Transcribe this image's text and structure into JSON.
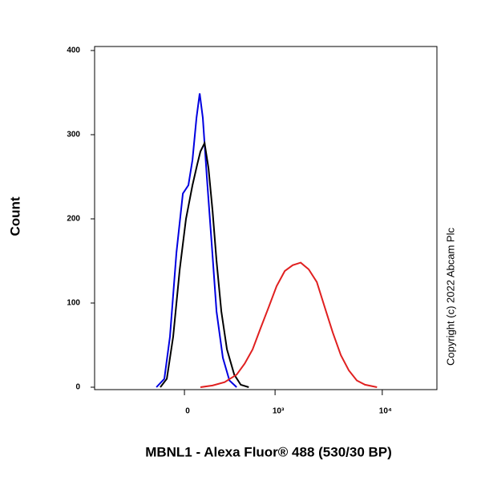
{
  "chart_data": {
    "type": "line",
    "x_label": "MBNL1 - Alexa Fluor® 488 (530/30 BP)",
    "y_label": "Count",
    "annotation": "Copyright (c) 2022 Abcam Plc",
    "xscale": "biexponential",
    "xlim": [
      -983,
      32000
    ],
    "xticks": [
      0,
      {
        "value": 1000,
        "label": "10³"
      },
      {
        "value": 10000,
        "label": "10⁴"
      }
    ],
    "ylim": [
      0,
      400
    ],
    "yticks": [
      0,
      100,
      200,
      300,
      400
    ],
    "series": [
      {
        "color": "#0000e0",
        "x": [
          -188,
          -131,
          -93,
          -51,
          -10,
          25,
          51,
          77,
          98,
          119,
          147,
          182,
          219,
          271,
          330,
          402
        ],
        "values": [
          0,
          10,
          60,
          160,
          230,
          240,
          270,
          320,
          349,
          320,
          250,
          170,
          90,
          35,
          8,
          0
        ]
      },
      {
        "color": "#000000",
        "x": [
          -159,
          -114,
          -72,
          -30,
          10,
          51,
          82,
          103,
          131,
          159,
          188,
          219,
          258,
          307,
          377,
          447,
          546
        ],
        "values": [
          0,
          10,
          60,
          140,
          200,
          240,
          265,
          280,
          290,
          260,
          210,
          150,
          90,
          45,
          15,
          3,
          0
        ]
      },
      {
        "color": "#e02020",
        "x": [
          103,
          188,
          286,
          402,
          494,
          599,
          720,
          867,
          1035,
          1237,
          1473,
          1751,
          2079,
          2474,
          2934,
          3484,
          4137,
          4906,
          5821,
          6920,
          8940
        ],
        "values": [
          0,
          2,
          6,
          15,
          28,
          45,
          70,
          95,
          120,
          138,
          145,
          148,
          140,
          125,
          95,
          65,
          38,
          20,
          8,
          3,
          0
        ]
      }
    ]
  }
}
